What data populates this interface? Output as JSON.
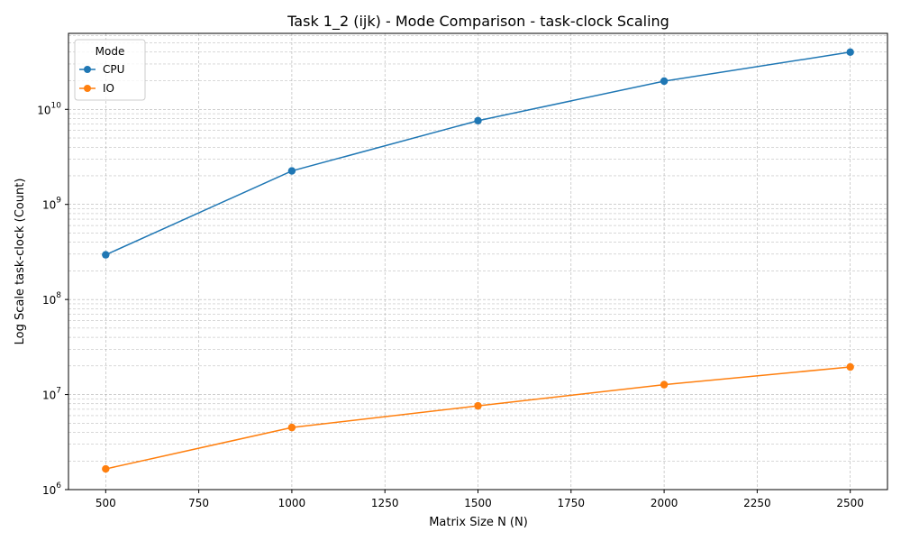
{
  "chart_data": {
    "type": "line",
    "title": "Task 1_2 (ijk) - Mode Comparison - task-clock Scaling",
    "xlabel": "Matrix Size N (N)",
    "ylabel": "Log Scale task-clock (Count)",
    "xlim": [
      400,
      2600
    ],
    "ylim": [
      1000000,
      63000000000
    ],
    "yscale": "log",
    "grid": true,
    "legend": {
      "title": "Mode",
      "placement": "top-left"
    },
    "x_ticks": [
      500,
      750,
      1000,
      1250,
      1500,
      1750,
      2000,
      2250,
      2500
    ],
    "x_tick_labels": [
      "500",
      "750",
      "1000",
      "1250",
      "1500",
      "1750",
      "2000",
      "2250",
      "2500"
    ],
    "y_ticks": [
      {
        "value": 1000000,
        "base": "10",
        "exp": "6"
      },
      {
        "value": 10000000,
        "base": "10",
        "exp": "7"
      },
      {
        "value": 100000000,
        "base": "10",
        "exp": "8"
      },
      {
        "value": 1000000000,
        "base": "10",
        "exp": "9"
      },
      {
        "value": 10000000000,
        "base": "10",
        "exp": "10"
      }
    ],
    "x": [
      500,
      1000,
      1500,
      2000,
      2500
    ],
    "series": [
      {
        "name": "CPU",
        "color": "#1f77b4",
        "values": [
          295000000,
          2250000000,
          7600000000,
          19800000000,
          40000000000
        ]
      },
      {
        "name": "IO",
        "color": "#ff7f0e",
        "values": [
          1650000,
          4500000,
          7600000,
          12700000,
          19500000
        ]
      }
    ]
  }
}
